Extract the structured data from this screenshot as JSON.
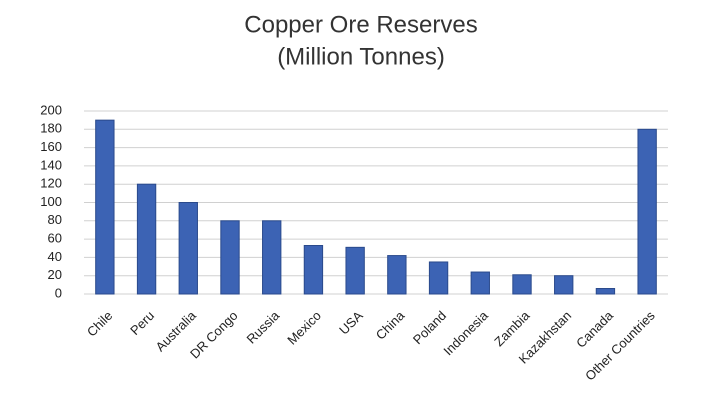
{
  "chart_data": {
    "type": "bar",
    "title": "Copper Ore Reserves",
    "subtitle": "(Million Tonnes)",
    "categories": [
      "Chile",
      "Peru",
      "Australia",
      "DR Congo",
      "Russia",
      "Mexico",
      "USA",
      "China",
      "Poland",
      "Indonesia",
      "Zambia",
      "Kazakhstan",
      "Canada",
      "Other Countries"
    ],
    "values": [
      190,
      120,
      100,
      80,
      80,
      53,
      51,
      42,
      35,
      24,
      21,
      20,
      6,
      180
    ],
    "color": "#3c63b4",
    "ylim": [
      0,
      200
    ],
    "yticks": [
      0,
      20,
      40,
      60,
      80,
      100,
      120,
      140,
      160,
      180,
      200
    ],
    "grid": true
  }
}
